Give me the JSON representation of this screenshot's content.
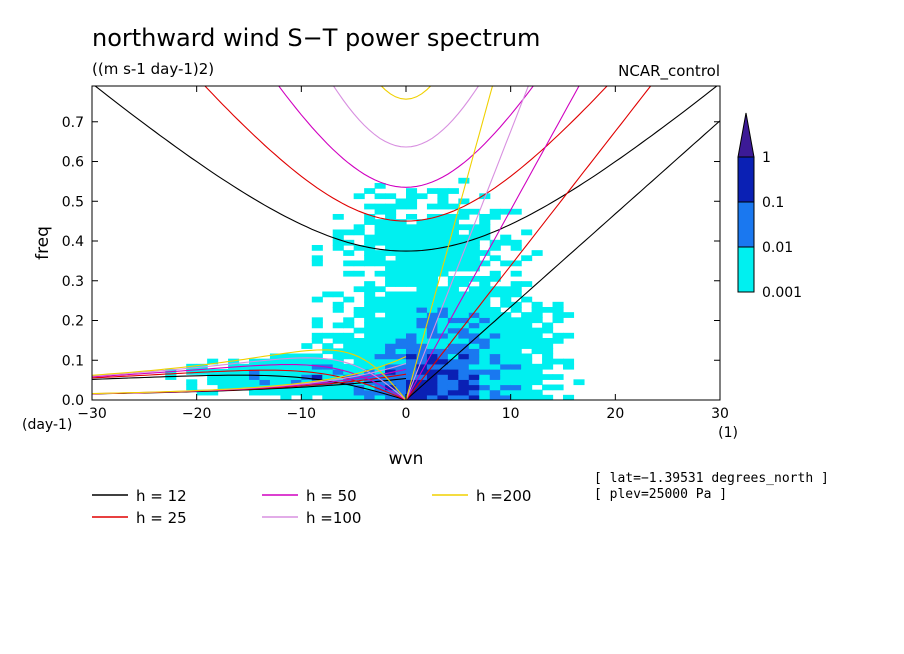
{
  "chart_data": {
    "type": "heatmap",
    "title": "northward wind S−T power spectrum",
    "subtitle": "((m s-1 day-1)2)",
    "dataset_label": "NCAR_control",
    "xlabel": "wvn",
    "ylabel": "freq",
    "x_unit": "(1)",
    "y_unit": "(day-1)",
    "xlim": [
      -30,
      30
    ],
    "ylim": [
      0,
      0.79
    ],
    "x_ticks": [
      -30,
      -20,
      -10,
      0,
      10,
      20,
      30
    ],
    "x_tick_labels": [
      "−30",
      "−20",
      "−10",
      "0",
      "10",
      "20",
      "30"
    ],
    "y_ticks": [
      0.0,
      0.1,
      0.2,
      0.3,
      0.4,
      0.5,
      0.6,
      0.7
    ],
    "y_tick_labels": [
      "0.0",
      "0.1",
      "0.2",
      "0.3",
      "0.4",
      "0.5",
      "0.6",
      "0.7"
    ],
    "colorbar": {
      "levels": [
        0.001,
        0.01,
        0.1,
        1
      ],
      "labels": [
        "0.001",
        "0.01",
        "0.1",
        "1"
      ],
      "colors": [
        "#00f0f0",
        "#1a78f0",
        "#0a20b4",
        "#3c1a96"
      ],
      "extend": "max"
    },
    "dispersion_curves": [
      {
        "label": "h = 12",
        "h": 12,
        "color": "#000000"
      },
      {
        "label": "h = 25",
        "h": 25,
        "color": "#e00000"
      },
      {
        "label": "h = 50",
        "h": 50,
        "color": "#d000c0"
      },
      {
        "label": "h =100",
        "h": 100,
        "color": "#d890e0"
      },
      {
        "label": "h =200",
        "h": 200,
        "color": "#f0d000"
      }
    ],
    "annotations": [
      "[ lat=−1.39531 degrees_north ]",
      "[ plev=25000 Pa ]"
    ]
  }
}
